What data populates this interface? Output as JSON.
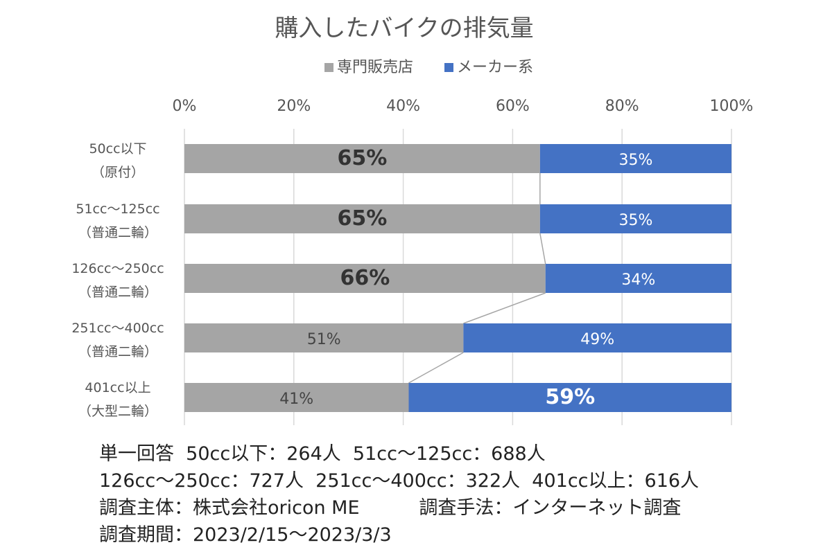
{
  "chart_data": {
    "type": "bar",
    "orientation": "horizontal",
    "stacked": "percent",
    "title": "購入したバイクの排気量",
    "legend": {
      "position": "top",
      "entries": [
        {
          "name": "専門販売店",
          "color": "#A5A5A5"
        },
        {
          "name": "メーカー系",
          "color": "#4472C4"
        }
      ]
    },
    "xlim": [
      0,
      100
    ],
    "x_ticks": [
      "0%",
      "20%",
      "40%",
      "60%",
      "80%",
      "100%"
    ],
    "categories": [
      {
        "line1": "50cc以下",
        "line2": "（原付）"
      },
      {
        "line1": "51cc～125cc",
        "line2": "（普通二輪）"
      },
      {
        "line1": "126cc～250cc",
        "line2": "（普通二輪）"
      },
      {
        "line1": "251cc～400cc",
        "line2": "（普通二輪）"
      },
      {
        "line1": "401cc以上",
        "line2": "（大型二輪）"
      }
    ],
    "series": [
      {
        "name": "専門販売店",
        "color": "#A5A5A5",
        "values": [
          65,
          65,
          66,
          51,
          41
        ],
        "labels": [
          "65%",
          "65%",
          "66%",
          "51%",
          "41%"
        ],
        "emphasized": [
          true,
          true,
          true,
          false,
          false
        ]
      },
      {
        "name": "メーカー系",
        "color": "#4472C4",
        "values": [
          35,
          35,
          34,
          49,
          59
        ],
        "labels": [
          "35%",
          "35%",
          "34%",
          "49%",
          "59%"
        ],
        "emphasized": [
          false,
          false,
          false,
          false,
          true
        ]
      }
    ],
    "series_lines": true,
    "grid": true
  },
  "notes": [
    "単一回答  50cc以下：264人  51cc～125cc：688人",
    "126cc～250cc：727人  251cc～400cc：322人  401cc以上：616人",
    "調査主体：株式会社oricon ME          調査手法：インターネット調査",
    "調査期間：2023/2/15～2023/3/3"
  ]
}
